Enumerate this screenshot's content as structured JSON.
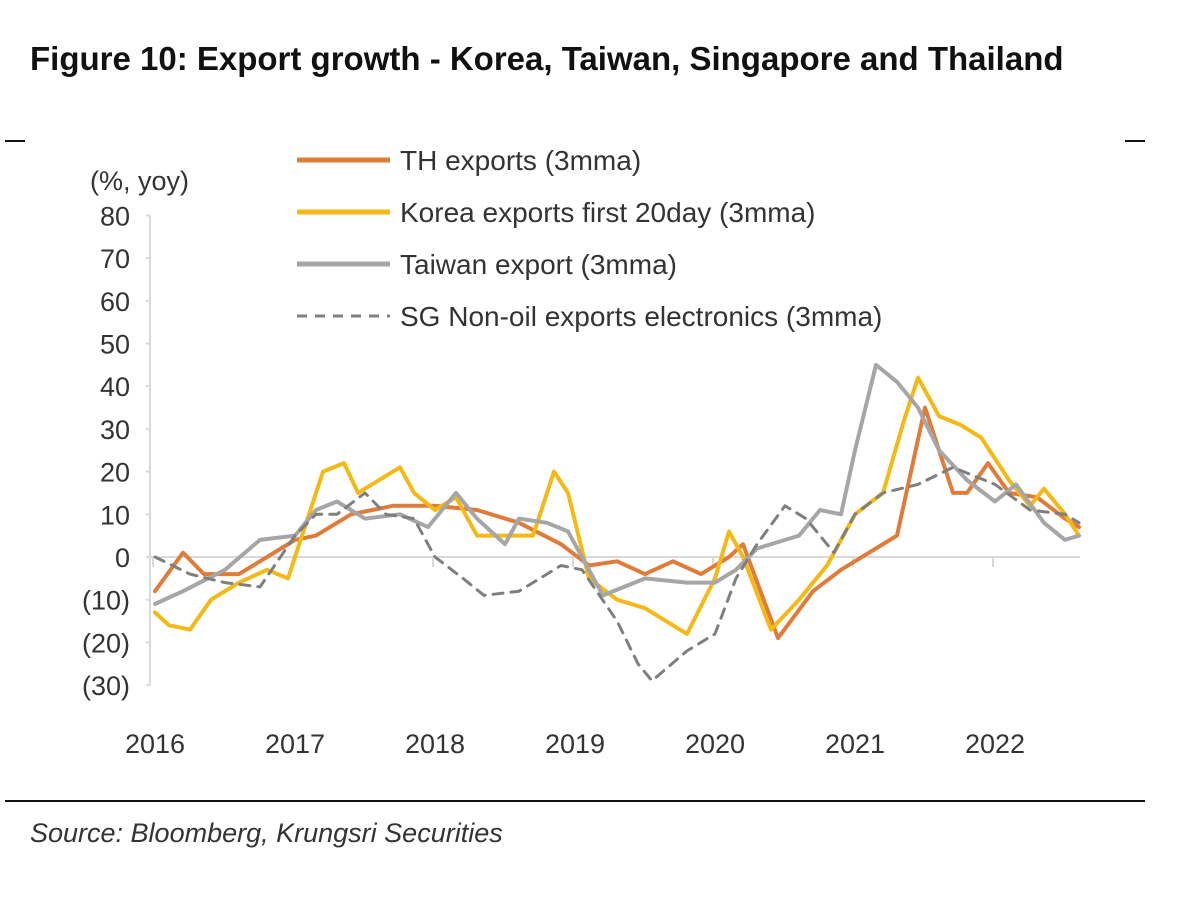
{
  "title": "Figure 10:  Export growth - Korea, Taiwan, Singapore and Thailand",
  "source": "Source: Bloomberg, Krungsri Securities",
  "chart_data": {
    "type": "line",
    "title": "Figure 10:  Export growth - Korea, Taiwan, Singapore and Thailand",
    "ylabel": "(%, yoy)",
    "xlabel": "",
    "ylim": [
      -30,
      80
    ],
    "xlim": [
      2016,
      2022.65
    ],
    "yticks": [
      80,
      70,
      60,
      50,
      40,
      30,
      20,
      10,
      0,
      -10,
      -20,
      -30
    ],
    "ytick_labels": [
      "80",
      "70",
      "60",
      "50",
      "40",
      "30",
      "20",
      "10",
      "0",
      "(10)",
      "(20)",
      "(30)"
    ],
    "xticks": [
      2016,
      2017,
      2018,
      2019,
      2020,
      2021,
      2022
    ],
    "xtick_labels": [
      "2016",
      "2017",
      "2018",
      "2019",
      "2020",
      "2021",
      "2022"
    ],
    "grid": false,
    "legend_position": "top",
    "series": [
      {
        "name": "TH exports (3mma)",
        "color": "#e07b39",
        "style": "solid",
        "x": [
          2016.0,
          2016.2,
          2016.35,
          2016.6,
          2016.9,
          2017.0,
          2017.15,
          2017.4,
          2017.7,
          2018.0,
          2018.3,
          2018.6,
          2018.9,
          2019.1,
          2019.3,
          2019.5,
          2019.7,
          2019.9,
          2020.1,
          2020.2,
          2020.45,
          2020.7,
          2020.9,
          2021.1,
          2021.3,
          2021.5,
          2021.7,
          2021.8,
          2021.95,
          2022.1,
          2022.3,
          2022.5,
          2022.6
        ],
        "y": [
          -8,
          1,
          -4,
          -4,
          2,
          4,
          5,
          10,
          12,
          12,
          11,
          8,
          3,
          -2,
          -1,
          -4,
          -1,
          -4,
          0,
          3,
          -19,
          -8,
          -3,
          1,
          5,
          35,
          15,
          15,
          22,
          15,
          14,
          9,
          7
        ]
      },
      {
        "name": "Korea exports first 20day (3mma)",
        "color": "#f5b915",
        "style": "solid",
        "x": [
          2016.0,
          2016.1,
          2016.25,
          2016.4,
          2016.6,
          2016.8,
          2016.95,
          2017.1,
          2017.2,
          2017.35,
          2017.45,
          2017.6,
          2017.75,
          2017.85,
          2018.0,
          2018.15,
          2018.3,
          2018.5,
          2018.7,
          2018.85,
          2018.95,
          2019.1,
          2019.3,
          2019.5,
          2019.8,
          2020.0,
          2020.1,
          2020.2,
          2020.4,
          2020.6,
          2020.8,
          2021.0,
          2021.2,
          2021.35,
          2021.45,
          2021.6,
          2021.75,
          2021.9,
          2022.1,
          2022.25,
          2022.35,
          2022.5,
          2022.6
        ],
        "y": [
          -13,
          -16,
          -17,
          -10,
          -6,
          -3,
          -5,
          10,
          20,
          22,
          15,
          18,
          21,
          15,
          11,
          14,
          5,
          5,
          5,
          20,
          15,
          -5,
          -10,
          -12,
          -18,
          -5,
          6,
          0,
          -17,
          -10,
          -2,
          10,
          15,
          32,
          42,
          33,
          31,
          28,
          18,
          12,
          16,
          10,
          5
        ]
      },
      {
        "name": "Taiwan export (3mma)",
        "color": "#a6a6a6",
        "style": "solid",
        "x": [
          2016.0,
          2016.2,
          2016.5,
          2016.75,
          2017.0,
          2017.15,
          2017.3,
          2017.5,
          2017.75,
          2017.95,
          2018.15,
          2018.3,
          2018.5,
          2018.6,
          2018.8,
          2018.95,
          2019.2,
          2019.5,
          2019.8,
          2020.0,
          2020.15,
          2020.3,
          2020.6,
          2020.75,
          2020.9,
          2021.0,
          2021.15,
          2021.3,
          2021.45,
          2021.6,
          2021.8,
          2022.0,
          2022.15,
          2022.35,
          2022.5,
          2022.6
        ],
        "y": [
          -11,
          -8,
          -3,
          4,
          5,
          11,
          13,
          9,
          10,
          7,
          15,
          9,
          3,
          9,
          8,
          6,
          -9,
          -5,
          -6,
          -6,
          -3,
          2,
          5,
          11,
          10,
          25,
          45,
          41,
          35,
          25,
          18,
          13,
          17,
          8,
          4,
          5
        ]
      },
      {
        "name": "SG Non-oil exports electronics (3mma)",
        "color": "#7f7f7f",
        "style": "dashed",
        "x": [
          2016.0,
          2016.25,
          2016.5,
          2016.75,
          2017.0,
          2017.15,
          2017.3,
          2017.5,
          2017.65,
          2017.85,
          2018.0,
          2018.2,
          2018.35,
          2018.6,
          2018.9,
          2019.05,
          2019.3,
          2019.45,
          2019.55,
          2019.8,
          2020.0,
          2020.15,
          2020.3,
          2020.5,
          2020.65,
          2020.85,
          2021.0,
          2021.2,
          2021.45,
          2021.7,
          2022.0,
          2022.25,
          2022.5,
          2022.6
        ],
        "y": [
          0,
          -4,
          -6,
          -7,
          5,
          10,
          10,
          15,
          10,
          9,
          0,
          -5,
          -9,
          -8,
          -2,
          -3,
          -15,
          -25,
          -29,
          -22,
          -18,
          -5,
          3,
          12,
          9,
          1,
          10,
          15,
          17,
          21,
          17,
          11,
          10,
          8
        ]
      }
    ]
  }
}
